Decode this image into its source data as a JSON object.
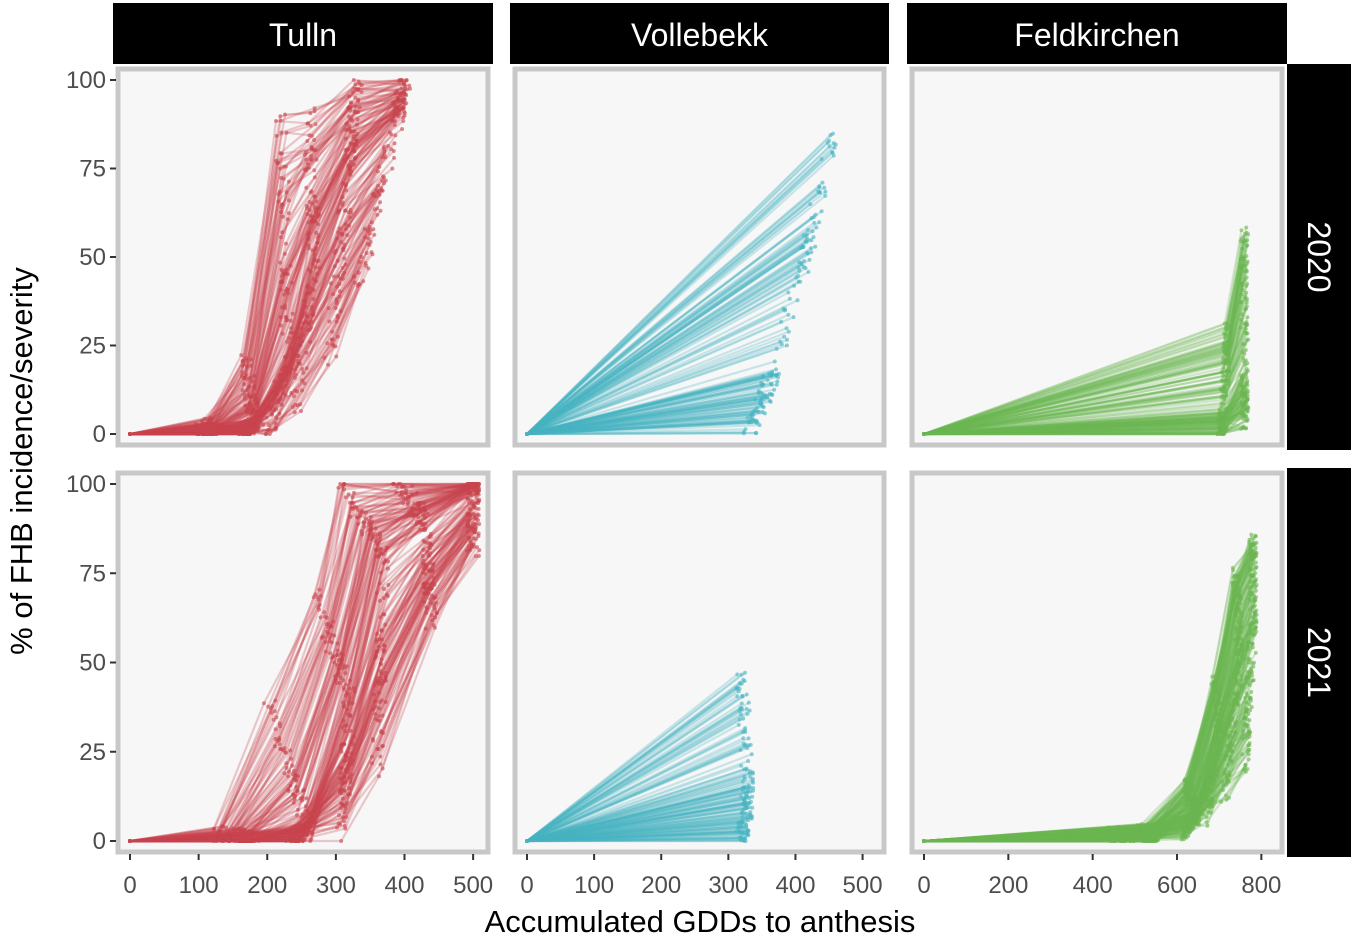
{
  "chart_data": {
    "type": "line",
    "title": "",
    "xlabel": "Accumulated GDDs to anthesis",
    "ylabel": "% of FHB incidence/severity",
    "ylim": [
      0,
      100
    ],
    "yticks": [
      0,
      25,
      50,
      75,
      100
    ],
    "grid": false,
    "legend": "none",
    "columns": [
      {
        "name": "Tulln",
        "color": "#c8464e",
        "xlim": [
          0,
          510
        ],
        "xticks": [
          0,
          100,
          200,
          300,
          400,
          500
        ]
      },
      {
        "name": "Vollebekk",
        "color": "#49b4c2",
        "xlim": [
          0,
          520
        ],
        "xticks": [
          0,
          100,
          200,
          300,
          400,
          500
        ]
      },
      {
        "name": "Feldkirchen",
        "color": "#6db652",
        "xlim": [
          0,
          830
        ],
        "xticks": [
          0,
          200,
          400,
          600,
          800
        ]
      }
    ],
    "rows": [
      {
        "name": "2020"
      },
      {
        "name": "2021"
      }
    ],
    "panels": [
      {
        "column": "Tulln",
        "row": "2020",
        "n_series": 150,
        "series_summary": [
          {
            "stat": "min",
            "x": [
              0,
              100,
              160,
              200,
              240,
              290,
              330
            ],
            "y": [
              0,
              0,
              0,
              0,
              5,
              20,
              40
            ]
          },
          {
            "stat": "median",
            "x": [
              0,
              120,
              180,
              230,
              270,
              320,
              390
            ],
            "y": [
              0,
              0,
              2,
              20,
              50,
              75,
              90
            ]
          },
          {
            "stat": "max",
            "x": [
              0,
              110,
              170,
              220,
              260,
              330,
              400
            ],
            "y": [
              0,
              2,
              20,
              90,
              90,
              100,
              100
            ]
          }
        ]
      },
      {
        "column": "Vollebekk",
        "row": "2020",
        "n_series": 160,
        "series_summary": [
          {
            "stat": "min",
            "x": [
              0,
              330
            ],
            "y": [
              0,
              1
            ]
          },
          {
            "stat": "median",
            "x": [
              0,
              370
            ],
            "y": [
              0,
              18
            ]
          },
          {
            "stat": "max",
            "x": [
              0,
              460
            ],
            "y": [
              0,
              85
            ]
          }
        ]
      },
      {
        "column": "Feldkirchen",
        "row": "2020",
        "n_series": 160,
        "series_summary": [
          {
            "stat": "min",
            "x": [
              0,
              700,
              760
            ],
            "y": [
              0,
              1,
              3
            ]
          },
          {
            "stat": "median",
            "x": [
              0,
              710,
              760
            ],
            "y": [
              0,
              5,
              15
            ]
          },
          {
            "stat": "max",
            "x": [
              0,
              720,
              760
            ],
            "y": [
              0,
              30,
              60
            ]
          }
        ]
      },
      {
        "column": "Tulln",
        "row": "2021",
        "n_series": 160,
        "series_summary": [
          {
            "stat": "min",
            "x": [
              0,
              160,
              230,
              310,
              360,
              440,
              500
            ],
            "y": [
              0,
              0,
              0,
              2,
              20,
              60,
              80
            ]
          },
          {
            "stat": "median",
            "x": [
              0,
              180,
              260,
              320,
              370,
              430,
              500
            ],
            "y": [
              0,
              0,
              3,
              40,
              80,
              90,
              100
            ]
          },
          {
            "stat": "max",
            "x": [
              0,
              120,
              200,
              270,
              310,
              390,
              500
            ],
            "y": [
              0,
              2,
              40,
              70,
              100,
              100,
              100
            ]
          }
        ]
      },
      {
        "column": "Vollebekk",
        "row": "2021",
        "n_series": 150,
        "series_summary": [
          {
            "stat": "min",
            "x": [
              0,
              320
            ],
            "y": [
              0,
              1
            ]
          },
          {
            "stat": "median",
            "x": [
              0,
              330
            ],
            "y": [
              0,
              13
            ]
          },
          {
            "stat": "max",
            "x": [
              0,
              320
            ],
            "y": [
              0,
              45
            ]
          }
        ]
      },
      {
        "column": "Feldkirchen",
        "row": "2021",
        "n_series": 200,
        "series_summary": [
          {
            "stat": "min",
            "x": [
              0,
              550,
              650,
              700,
              760
            ],
            "y": [
              0,
              1,
              3,
              10,
              20
            ]
          },
          {
            "stat": "median",
            "x": [
              0,
              550,
              650,
              700,
              750,
              780
            ],
            "y": [
              0,
              2,
              8,
              30,
              50,
              60
            ]
          },
          {
            "stat": "max",
            "x": [
              0,
              520,
              620,
              690,
              740,
              780
            ],
            "y": [
              0,
              2,
              15,
              45,
              75,
              85
            ]
          }
        ]
      }
    ]
  }
}
